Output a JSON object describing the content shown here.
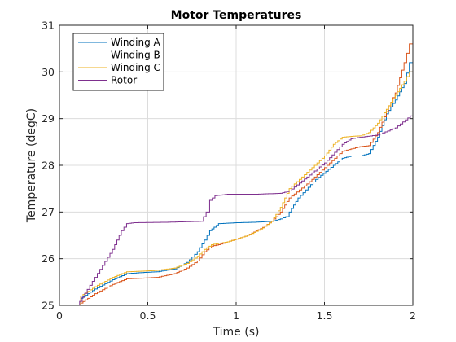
{
  "chart_data": {
    "type": "line",
    "title": "Motor Temperatures",
    "xlabel": "Time (s)",
    "ylabel": "Temperature (degC)",
    "xlim": [
      0,
      2
    ],
    "ylim": [
      25,
      31
    ],
    "xticks": [
      0,
      0.5,
      1,
      1.5,
      2
    ],
    "xtick_labels": [
      "0",
      "0.5",
      "1",
      "1.5",
      "2"
    ],
    "yticks": [
      25,
      26,
      27,
      28,
      29,
      30,
      31
    ],
    "ytick_labels": [
      "25",
      "26",
      "27",
      "28",
      "29",
      "30",
      "31"
    ],
    "grid": true,
    "legend_position": "top-left",
    "series": [
      {
        "name": "Winding A",
        "color": "#0072BD",
        "points": [
          [
            0,
            25.0
          ],
          [
            0.1,
            25.0
          ],
          [
            0.12,
            25.15
          ],
          [
            0.2,
            25.35
          ],
          [
            0.3,
            25.55
          ],
          [
            0.38,
            25.68
          ],
          [
            0.45,
            25.7
          ],
          [
            0.55,
            25.72
          ],
          [
            0.65,
            25.78
          ],
          [
            0.72,
            25.92
          ],
          [
            0.78,
            26.15
          ],
          [
            0.82,
            26.4
          ],
          [
            0.85,
            26.6
          ],
          [
            0.9,
            26.75
          ],
          [
            1.0,
            26.77
          ],
          [
            1.1,
            26.78
          ],
          [
            1.2,
            26.8
          ],
          [
            1.25,
            26.85
          ],
          [
            1.28,
            26.9
          ],
          [
            1.3,
            27.0
          ],
          [
            1.35,
            27.3
          ],
          [
            1.45,
            27.7
          ],
          [
            1.55,
            28.0
          ],
          [
            1.6,
            28.15
          ],
          [
            1.65,
            28.2
          ],
          [
            1.7,
            28.2
          ],
          [
            1.75,
            28.25
          ],
          [
            1.8,
            28.6
          ],
          [
            1.85,
            29.1
          ],
          [
            1.9,
            29.4
          ],
          [
            1.95,
            29.75
          ],
          [
            1.98,
            30.2
          ],
          [
            2.0,
            30.45
          ]
        ]
      },
      {
        "name": "Winding B",
        "color": "#D95319",
        "points": [
          [
            0,
            25.0
          ],
          [
            0.1,
            25.0
          ],
          [
            0.12,
            25.05
          ],
          [
            0.2,
            25.25
          ],
          [
            0.3,
            25.45
          ],
          [
            0.38,
            25.57
          ],
          [
            0.45,
            25.58
          ],
          [
            0.55,
            25.6
          ],
          [
            0.65,
            25.68
          ],
          [
            0.72,
            25.8
          ],
          [
            0.78,
            25.95
          ],
          [
            0.82,
            26.15
          ],
          [
            0.86,
            26.27
          ],
          [
            0.9,
            26.3
          ],
          [
            0.95,
            26.36
          ],
          [
            1.0,
            26.42
          ],
          [
            1.05,
            26.48
          ],
          [
            1.1,
            26.57
          ],
          [
            1.15,
            26.67
          ],
          [
            1.2,
            26.8
          ],
          [
            1.25,
            27.0
          ],
          [
            1.3,
            27.3
          ],
          [
            1.4,
            27.6
          ],
          [
            1.5,
            27.95
          ],
          [
            1.6,
            28.3
          ],
          [
            1.65,
            28.35
          ],
          [
            1.7,
            28.4
          ],
          [
            1.75,
            28.42
          ],
          [
            1.8,
            28.7
          ],
          [
            1.85,
            29.15
          ],
          [
            1.9,
            29.55
          ],
          [
            1.95,
            30.2
          ],
          [
            1.98,
            30.6
          ],
          [
            2.0,
            30.9
          ]
        ]
      },
      {
        "name": "Winding C",
        "color": "#EDB120",
        "points": [
          [
            0,
            25.0
          ],
          [
            0.1,
            25.0
          ],
          [
            0.12,
            25.2
          ],
          [
            0.2,
            25.4
          ],
          [
            0.3,
            25.6
          ],
          [
            0.38,
            25.72
          ],
          [
            0.45,
            25.73
          ],
          [
            0.55,
            25.75
          ],
          [
            0.65,
            25.8
          ],
          [
            0.72,
            25.9
          ],
          [
            0.78,
            26.05
          ],
          [
            0.82,
            26.2
          ],
          [
            0.86,
            26.3
          ],
          [
            0.9,
            26.33
          ],
          [
            0.95,
            26.36
          ],
          [
            1.0,
            26.42
          ],
          [
            1.05,
            26.48
          ],
          [
            1.1,
            26.56
          ],
          [
            1.15,
            26.66
          ],
          [
            1.2,
            26.8
          ],
          [
            1.25,
            27.1
          ],
          [
            1.3,
            27.5
          ],
          [
            1.4,
            27.85
          ],
          [
            1.5,
            28.2
          ],
          [
            1.55,
            28.45
          ],
          [
            1.6,
            28.6
          ],
          [
            1.65,
            28.62
          ],
          [
            1.7,
            28.63
          ],
          [
            1.75,
            28.7
          ],
          [
            1.8,
            28.9
          ],
          [
            1.85,
            29.2
          ],
          [
            1.9,
            29.5
          ],
          [
            1.95,
            29.8
          ],
          [
            1.98,
            30.0
          ],
          [
            2.0,
            30.15
          ]
        ]
      },
      {
        "name": "Rotor",
        "color": "#7E2F8E",
        "points": [
          [
            0,
            25.0
          ],
          [
            0.1,
            25.0
          ],
          [
            0.2,
            25.6
          ],
          [
            0.3,
            26.2
          ],
          [
            0.35,
            26.6
          ],
          [
            0.38,
            26.75
          ],
          [
            0.42,
            26.77
          ],
          [
            0.6,
            26.78
          ],
          [
            0.8,
            26.8
          ],
          [
            0.83,
            27.0
          ],
          [
            0.85,
            27.25
          ],
          [
            0.88,
            27.35
          ],
          [
            0.95,
            27.38
          ],
          [
            1.1,
            27.38
          ],
          [
            1.25,
            27.4
          ],
          [
            1.3,
            27.45
          ],
          [
            1.4,
            27.75
          ],
          [
            1.5,
            28.05
          ],
          [
            1.6,
            28.45
          ],
          [
            1.65,
            28.57
          ],
          [
            1.7,
            28.6
          ],
          [
            1.8,
            28.65
          ],
          [
            1.9,
            28.8
          ],
          [
            2.0,
            29.1
          ]
        ]
      }
    ]
  }
}
